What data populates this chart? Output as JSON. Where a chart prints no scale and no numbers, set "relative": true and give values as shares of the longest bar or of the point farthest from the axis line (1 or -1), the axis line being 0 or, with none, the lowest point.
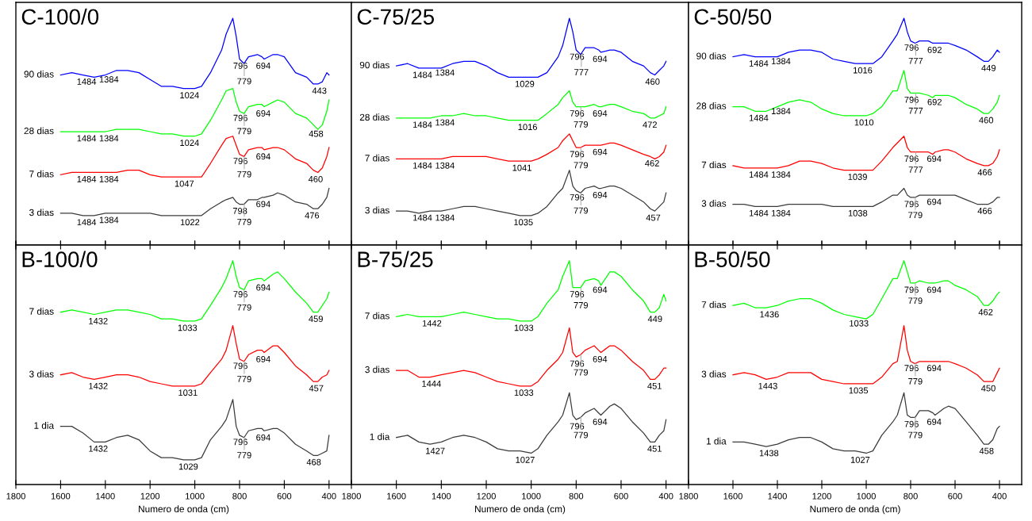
{
  "chart_data": [
    {
      "type": "line",
      "title": "C-100/0",
      "relative": true,
      "xlim": [
        1800,
        300
      ],
      "xticks": [
        1800,
        1600,
        1400,
        1200,
        1000,
        800,
        600,
        400
      ],
      "tick_labels": false,
      "x": [
        1600,
        1550,
        1500,
        1450,
        1400,
        1350,
        1300,
        1250,
        1200,
        1150,
        1100,
        1050,
        1000,
        970,
        930,
        880,
        860,
        830,
        815,
        800,
        780,
        760,
        720,
        700,
        690,
        650,
        630,
        600,
        550,
        500,
        470,
        450,
        430,
        410,
        400
      ],
      "series": [
        {
          "name": "90 dias",
          "color": "#0000ff",
          "values": [
            0.75,
            0.76,
            0.75,
            0.74,
            0.75,
            0.77,
            0.77,
            0.76,
            0.73,
            0.7,
            0.7,
            0.69,
            0.69,
            0.7,
            0.76,
            0.86,
            0.93,
            1.0,
            0.92,
            0.82,
            0.8,
            0.83,
            0.84,
            0.83,
            0.82,
            0.84,
            0.84,
            0.83,
            0.76,
            0.74,
            0.71,
            0.71,
            0.72,
            0.76,
            0.75
          ]
        },
        {
          "name": "28 dias",
          "color": "#00ff00",
          "values": [
            0.5,
            0.5,
            0.5,
            0.5,
            0.5,
            0.51,
            0.51,
            0.51,
            0.5,
            0.49,
            0.49,
            0.48,
            0.48,
            0.49,
            0.55,
            0.64,
            0.68,
            0.69,
            0.63,
            0.59,
            0.58,
            0.61,
            0.62,
            0.62,
            0.61,
            0.63,
            0.64,
            0.63,
            0.58,
            0.56,
            0.53,
            0.51,
            0.53,
            0.59,
            0.64
          ]
        },
        {
          "name": "7 dias",
          "color": "#ff0000",
          "values": [
            0.31,
            0.32,
            0.32,
            0.32,
            0.32,
            0.32,
            0.33,
            0.33,
            0.31,
            0.3,
            0.3,
            0.3,
            0.3,
            0.3,
            0.36,
            0.44,
            0.47,
            0.48,
            0.44,
            0.4,
            0.39,
            0.42,
            0.43,
            0.43,
            0.42,
            0.43,
            0.43,
            0.42,
            0.38,
            0.36,
            0.33,
            0.32,
            0.34,
            0.39,
            0.43
          ]
        },
        {
          "name": "3 dias",
          "color": "#3c3c3c",
          "values": [
            0.14,
            0.14,
            0.13,
            0.13,
            0.14,
            0.14,
            0.14,
            0.14,
            0.14,
            0.13,
            0.13,
            0.13,
            0.13,
            0.13,
            0.16,
            0.19,
            0.2,
            0.21,
            0.19,
            0.18,
            0.18,
            0.2,
            0.2,
            0.21,
            0.21,
            0.22,
            0.23,
            0.22,
            0.19,
            0.18,
            0.16,
            0.16,
            0.18,
            0.21,
            0.25
          ]
        }
      ],
      "annotations": [
        {
          "text": "1484",
          "x": 1484,
          "y": 0.75
        },
        {
          "text": "1384",
          "x": 1384,
          "y": 0.76
        },
        {
          "text": "1024",
          "x": 1024,
          "y": 0.69
        },
        {
          "text": "796",
          "x": 796,
          "y": 0.82
        },
        {
          "text": "694",
          "x": 694,
          "y": 0.82
        },
        {
          "text": "779",
          "x": 779,
          "y": 0.8
        },
        {
          "text": "443",
          "x": 443,
          "y": 0.71
        },
        {
          "text": "1484",
          "x": 1484,
          "y": 0.5
        },
        {
          "text": "1384",
          "x": 1384,
          "y": 0.5
        },
        {
          "text": "1024",
          "x": 1024,
          "y": 0.48
        },
        {
          "text": "796",
          "x": 796,
          "y": 0.59
        },
        {
          "text": "694",
          "x": 694,
          "y": 0.61
        },
        {
          "text": "779",
          "x": 779,
          "y": 0.58
        },
        {
          "text": "458",
          "x": 458,
          "y": 0.52
        },
        {
          "text": "1484",
          "x": 1484,
          "y": 0.32
        },
        {
          "text": "1384",
          "x": 1384,
          "y": 0.32
        },
        {
          "text": "1047",
          "x": 1047,
          "y": 0.3
        },
        {
          "text": "796",
          "x": 796,
          "y": 0.4
        },
        {
          "text": "694",
          "x": 694,
          "y": 0.42
        },
        {
          "text": "779",
          "x": 779,
          "y": 0.39
        },
        {
          "text": "460",
          "x": 460,
          "y": 0.32
        },
        {
          "text": "1484",
          "x": 1484,
          "y": 0.13
        },
        {
          "text": "1384",
          "x": 1384,
          "y": 0.14
        },
        {
          "text": "1022",
          "x": 1022,
          "y": 0.13
        },
        {
          "text": "798",
          "x": 798,
          "y": 0.18
        },
        {
          "text": "694",
          "x": 694,
          "y": 0.21
        },
        {
          "text": "779",
          "x": 779,
          "y": 0.18
        },
        {
          "text": "476",
          "x": 476,
          "y": 0.16
        }
      ]
    },
    {
      "type": "line",
      "title": "C-75/25",
      "relative": true,
      "xlim": [
        1800,
        300
      ],
      "xticks": [
        1800,
        1600,
        1400,
        1200,
        1000,
        800,
        600,
        400
      ],
      "tick_labels": false,
      "x": [
        1600,
        1550,
        1500,
        1450,
        1400,
        1350,
        1300,
        1250,
        1200,
        1150,
        1100,
        1050,
        1000,
        970,
        930,
        880,
        860,
        830,
        815,
        800,
        780,
        760,
        720,
        700,
        690,
        650,
        630,
        600,
        550,
        500,
        470,
        450,
        430,
        410,
        400
      ],
      "series": [
        {
          "name": "90 dias",
          "color": "#0000ff",
          "values": [
            0.79,
            0.8,
            0.78,
            0.78,
            0.78,
            0.8,
            0.81,
            0.81,
            0.79,
            0.76,
            0.74,
            0.74,
            0.74,
            0.74,
            0.76,
            0.83,
            0.88,
            1.0,
            0.94,
            0.86,
            0.84,
            0.87,
            0.87,
            0.86,
            0.85,
            0.86,
            0.86,
            0.85,
            0.81,
            0.79,
            0.76,
            0.75,
            0.77,
            0.79,
            0.81
          ]
        },
        {
          "name": "28 dias",
          "color": "#00ff00",
          "values": [
            0.56,
            0.56,
            0.56,
            0.56,
            0.57,
            0.57,
            0.58,
            0.57,
            0.57,
            0.56,
            0.55,
            0.55,
            0.55,
            0.55,
            0.58,
            0.62,
            0.65,
            0.68,
            0.63,
            0.61,
            0.61,
            0.61,
            0.62,
            0.61,
            0.61,
            0.62,
            0.62,
            0.61,
            0.59,
            0.58,
            0.56,
            0.56,
            0.57,
            0.58,
            0.61
          ]
        },
        {
          "name": "7 dias",
          "color": "#ff0000",
          "values": [
            0.38,
            0.38,
            0.38,
            0.38,
            0.38,
            0.39,
            0.39,
            0.39,
            0.39,
            0.38,
            0.37,
            0.37,
            0.37,
            0.38,
            0.4,
            0.43,
            0.46,
            0.49,
            0.46,
            0.43,
            0.43,
            0.44,
            0.44,
            0.44,
            0.44,
            0.45,
            0.45,
            0.44,
            0.42,
            0.4,
            0.39,
            0.38,
            0.39,
            0.41,
            0.44
          ]
        },
        {
          "name": "3 dias",
          "color": "#3c3c3c",
          "values": [
            0.15,
            0.15,
            0.14,
            0.15,
            0.15,
            0.16,
            0.17,
            0.17,
            0.16,
            0.15,
            0.14,
            0.13,
            0.13,
            0.14,
            0.17,
            0.23,
            0.25,
            0.33,
            0.26,
            0.24,
            0.23,
            0.25,
            0.26,
            0.25,
            0.25,
            0.26,
            0.26,
            0.25,
            0.22,
            0.19,
            0.16,
            0.15,
            0.17,
            0.19,
            0.23
          ]
        }
      ],
      "annotations": [
        {
          "text": "1484",
          "x": 1484,
          "y": 0.78
        },
        {
          "text": "1384",
          "x": 1384,
          "y": 0.79
        },
        {
          "text": "1029",
          "x": 1029,
          "y": 0.74
        },
        {
          "text": "796",
          "x": 796,
          "y": 0.86
        },
        {
          "text": "694",
          "x": 694,
          "y": 0.85
        },
        {
          "text": "777",
          "x": 777,
          "y": 0.84
        },
        {
          "text": "460",
          "x": 460,
          "y": 0.75
        },
        {
          "text": "1484",
          "x": 1484,
          "y": 0.56
        },
        {
          "text": "1384",
          "x": 1384,
          "y": 0.57
        },
        {
          "text": "1016",
          "x": 1016,
          "y": 0.55
        },
        {
          "text": "796",
          "x": 796,
          "y": 0.61
        },
        {
          "text": "694",
          "x": 694,
          "y": 0.61
        },
        {
          "text": "779",
          "x": 779,
          "y": 0.61
        },
        {
          "text": "472",
          "x": 472,
          "y": 0.56
        },
        {
          "text": "1484",
          "x": 1484,
          "y": 0.38
        },
        {
          "text": "1384",
          "x": 1384,
          "y": 0.38
        },
        {
          "text": "1041",
          "x": 1041,
          "y": 0.37
        },
        {
          "text": "796",
          "x": 796,
          "y": 0.43
        },
        {
          "text": "694",
          "x": 694,
          "y": 0.44
        },
        {
          "text": "779",
          "x": 779,
          "y": 0.43
        },
        {
          "text": "462",
          "x": 462,
          "y": 0.39
        },
        {
          "text": "1484",
          "x": 1484,
          "y": 0.15
        },
        {
          "text": "1384",
          "x": 1384,
          "y": 0.15
        },
        {
          "text": "1035",
          "x": 1035,
          "y": 0.13
        },
        {
          "text": "796",
          "x": 796,
          "y": 0.24
        },
        {
          "text": "694",
          "x": 694,
          "y": 0.25
        },
        {
          "text": "779",
          "x": 779,
          "y": 0.23
        },
        {
          "text": "457",
          "x": 457,
          "y": 0.15
        }
      ]
    },
    {
      "type": "line",
      "title": "C-50/50",
      "relative": true,
      "xlim": [
        1800,
        300
      ],
      "xticks": [
        1800,
        1600,
        1400,
        1200,
        1000,
        800,
        600,
        400
      ],
      "tick_labels": false,
      "x": [
        1600,
        1550,
        1500,
        1450,
        1400,
        1350,
        1300,
        1250,
        1200,
        1150,
        1100,
        1050,
        1000,
        970,
        930,
        880,
        860,
        830,
        815,
        800,
        780,
        760,
        720,
        700,
        690,
        650,
        630,
        600,
        550,
        500,
        470,
        450,
        430,
        410,
        400
      ],
      "series": [
        {
          "name": "90 dias",
          "color": "#0000ff",
          "values": [
            0.83,
            0.84,
            0.83,
            0.83,
            0.83,
            0.85,
            0.86,
            0.86,
            0.85,
            0.82,
            0.81,
            0.8,
            0.8,
            0.8,
            0.83,
            0.9,
            0.93,
            1.0,
            0.94,
            0.9,
            0.89,
            0.9,
            0.9,
            0.89,
            0.89,
            0.89,
            0.89,
            0.88,
            0.86,
            0.83,
            0.81,
            0.81,
            0.83,
            0.86,
            0.85
          ]
        },
        {
          "name": "28 dias",
          "color": "#00ff00",
          "values": [
            0.61,
            0.61,
            0.59,
            0.59,
            0.61,
            0.63,
            0.64,
            0.63,
            0.6,
            0.58,
            0.57,
            0.57,
            0.57,
            0.58,
            0.61,
            0.68,
            0.68,
            0.77,
            0.69,
            0.67,
            0.67,
            0.67,
            0.66,
            0.65,
            0.66,
            0.66,
            0.66,
            0.65,
            0.62,
            0.6,
            0.58,
            0.58,
            0.6,
            0.63,
            0.66
          ]
        },
        {
          "name": "7 dias",
          "color": "#ff0000",
          "values": [
            0.35,
            0.34,
            0.34,
            0.34,
            0.34,
            0.35,
            0.37,
            0.37,
            0.36,
            0.34,
            0.33,
            0.33,
            0.33,
            0.33,
            0.37,
            0.43,
            0.45,
            0.48,
            0.43,
            0.41,
            0.41,
            0.41,
            0.41,
            0.4,
            0.41,
            0.42,
            0.42,
            0.41,
            0.38,
            0.36,
            0.35,
            0.35,
            0.36,
            0.39,
            0.42
          ]
        },
        {
          "name": "3 dias",
          "color": "#3c3c3c",
          "values": [
            0.18,
            0.18,
            0.17,
            0.17,
            0.17,
            0.18,
            0.18,
            0.18,
            0.18,
            0.17,
            0.17,
            0.17,
            0.17,
            0.17,
            0.19,
            0.22,
            0.22,
            0.25,
            0.22,
            0.21,
            0.21,
            0.22,
            0.22,
            0.22,
            0.22,
            0.22,
            0.22,
            0.22,
            0.2,
            0.18,
            0.18,
            0.18,
            0.19,
            0.21,
            0.21
          ]
        }
      ],
      "annotations": [
        {
          "text": "1484",
          "x": 1484,
          "y": 0.83
        },
        {
          "text": "1384",
          "x": 1384,
          "y": 0.84
        },
        {
          "text": "1016",
          "x": 1016,
          "y": 0.8
        },
        {
          "text": "796",
          "x": 796,
          "y": 0.9
        },
        {
          "text": "692",
          "x": 692,
          "y": 0.89
        },
        {
          "text": "777",
          "x": 777,
          "y": 0.89
        },
        {
          "text": "449",
          "x": 449,
          "y": 0.81
        },
        {
          "text": "1484",
          "x": 1484,
          "y": 0.59
        },
        {
          "text": "1384",
          "x": 1384,
          "y": 0.62
        },
        {
          "text": "1010",
          "x": 1010,
          "y": 0.57
        },
        {
          "text": "796",
          "x": 796,
          "y": 0.67
        },
        {
          "text": "692",
          "x": 692,
          "y": 0.66
        },
        {
          "text": "777",
          "x": 777,
          "y": 0.67
        },
        {
          "text": "460",
          "x": 460,
          "y": 0.58
        },
        {
          "text": "1484",
          "x": 1484,
          "y": 0.34
        },
        {
          "text": "1384",
          "x": 1384,
          "y": 0.34
        },
        {
          "text": "1039",
          "x": 1039,
          "y": 0.33
        },
        {
          "text": "796",
          "x": 796,
          "y": 0.41
        },
        {
          "text": "694",
          "x": 694,
          "y": 0.41
        },
        {
          "text": "777",
          "x": 777,
          "y": 0.41
        },
        {
          "text": "466",
          "x": 466,
          "y": 0.35
        },
        {
          "text": "1484",
          "x": 1484,
          "y": 0.17
        },
        {
          "text": "1384",
          "x": 1384,
          "y": 0.17
        },
        {
          "text": "1038",
          "x": 1038,
          "y": 0.17
        },
        {
          "text": "796",
          "x": 796,
          "y": 0.21
        },
        {
          "text": "694",
          "x": 694,
          "y": 0.22
        },
        {
          "text": "779",
          "x": 779,
          "y": 0.21
        },
        {
          "text": "466",
          "x": 466,
          "y": 0.18
        }
      ]
    },
    {
      "type": "line",
      "title": "B-100/0",
      "xlabel": "Numero de onda (cm)",
      "relative": true,
      "xlim": [
        1800,
        300
      ],
      "xticks": [
        1800,
        1600,
        1400,
        1200,
        1000,
        800,
        600,
        400
      ],
      "tick_labels": "x",
      "x": [
        1600,
        1550,
        1500,
        1450,
        1400,
        1350,
        1300,
        1250,
        1200,
        1150,
        1100,
        1050,
        1000,
        970,
        930,
        880,
        860,
        830,
        815,
        800,
        780,
        760,
        720,
        700,
        690,
        650,
        630,
        600,
        550,
        500,
        470,
        450,
        430,
        410,
        400
      ],
      "series": [
        {
          "name": "7 dias",
          "color": "#00ff00",
          "values": [
            0.77,
            0.78,
            0.77,
            0.76,
            0.77,
            0.78,
            0.78,
            0.77,
            0.76,
            0.74,
            0.74,
            0.73,
            0.73,
            0.74,
            0.8,
            0.88,
            0.92,
            1.0,
            0.93,
            0.88,
            0.87,
            0.91,
            0.92,
            0.92,
            0.91,
            0.94,
            0.95,
            0.92,
            0.86,
            0.81,
            0.77,
            0.77,
            0.8,
            0.83,
            0.86
          ]
        },
        {
          "name": "3 dias",
          "color": "#ff0000",
          "values": [
            0.49,
            0.5,
            0.48,
            0.47,
            0.48,
            0.49,
            0.49,
            0.48,
            0.46,
            0.45,
            0.44,
            0.44,
            0.44,
            0.45,
            0.5,
            0.56,
            0.6,
            0.71,
            0.63,
            0.56,
            0.55,
            0.58,
            0.6,
            0.6,
            0.59,
            0.62,
            0.62,
            0.59,
            0.53,
            0.49,
            0.46,
            0.46,
            0.48,
            0.49,
            0.51
          ]
        },
        {
          "name": "1 dia",
          "color": "#3c3c3c",
          "values": [
            0.26,
            0.26,
            0.23,
            0.19,
            0.19,
            0.21,
            0.22,
            0.2,
            0.15,
            0.12,
            0.12,
            0.11,
            0.11,
            0.12,
            0.2,
            0.26,
            0.29,
            0.38,
            0.26,
            0.22,
            0.21,
            0.24,
            0.25,
            0.25,
            0.24,
            0.25,
            0.25,
            0.23,
            0.18,
            0.15,
            0.13,
            0.13,
            0.14,
            0.15,
            0.22
          ]
        }
      ],
      "annotations": [
        {
          "text": "1432",
          "x": 1432,
          "y": 0.76
        },
        {
          "text": "1033",
          "x": 1033,
          "y": 0.73
        },
        {
          "text": "796",
          "x": 796,
          "y": 0.88
        },
        {
          "text": "694",
          "x": 694,
          "y": 0.91
        },
        {
          "text": "779",
          "x": 779,
          "y": 0.87
        },
        {
          "text": "459",
          "x": 459,
          "y": 0.77
        },
        {
          "text": "1432",
          "x": 1432,
          "y": 0.47
        },
        {
          "text": "1031",
          "x": 1031,
          "y": 0.44
        },
        {
          "text": "796",
          "x": 796,
          "y": 0.56
        },
        {
          "text": "694",
          "x": 694,
          "y": 0.59
        },
        {
          "text": "779",
          "x": 779,
          "y": 0.55
        },
        {
          "text": "457",
          "x": 457,
          "y": 0.46
        },
        {
          "text": "1432",
          "x": 1432,
          "y": 0.19
        },
        {
          "text": "1029",
          "x": 1029,
          "y": 0.11
        },
        {
          "text": "796",
          "x": 796,
          "y": 0.22
        },
        {
          "text": "694",
          "x": 694,
          "y": 0.24
        },
        {
          "text": "779",
          "x": 779,
          "y": 0.21
        },
        {
          "text": "468",
          "x": 468,
          "y": 0.13
        }
      ]
    },
    {
      "type": "line",
      "title": "B-75/25",
      "xlabel": "Numero de onda (cm)",
      "relative": true,
      "xlim": [
        1800,
        300
      ],
      "xticks": [
        1800,
        1600,
        1400,
        1200,
        1000,
        800,
        600,
        400
      ],
      "tick_labels": "x",
      "x": [
        1600,
        1550,
        1500,
        1450,
        1400,
        1350,
        1300,
        1250,
        1200,
        1150,
        1100,
        1050,
        1000,
        970,
        930,
        880,
        860,
        830,
        815,
        800,
        780,
        760,
        720,
        700,
        690,
        650,
        630,
        600,
        550,
        500,
        470,
        450,
        430,
        410,
        400
      ],
      "series": [
        {
          "name": "7 dias",
          "color": "#00ff00",
          "values": [
            0.75,
            0.76,
            0.75,
            0.75,
            0.75,
            0.76,
            0.77,
            0.76,
            0.75,
            0.74,
            0.74,
            0.73,
            0.73,
            0.75,
            0.81,
            0.87,
            0.93,
            1.0,
            0.88,
            0.88,
            0.88,
            0.91,
            0.92,
            0.91,
            0.89,
            0.95,
            0.95,
            0.93,
            0.87,
            0.82,
            0.77,
            0.77,
            0.79,
            0.85,
            0.82
          ]
        },
        {
          "name": "3 dias",
          "color": "#ff0000",
          "values": [
            0.51,
            0.51,
            0.48,
            0.48,
            0.49,
            0.5,
            0.51,
            0.5,
            0.48,
            0.46,
            0.45,
            0.44,
            0.44,
            0.46,
            0.51,
            0.56,
            0.59,
            0.7,
            0.59,
            0.57,
            0.58,
            0.6,
            0.62,
            0.6,
            0.59,
            0.62,
            0.62,
            0.6,
            0.55,
            0.51,
            0.47,
            0.47,
            0.49,
            0.52,
            0.52
          ]
        },
        {
          "name": "1 dia",
          "color": "#3c3c3c",
          "values": [
            0.21,
            0.22,
            0.19,
            0.18,
            0.19,
            0.21,
            0.22,
            0.21,
            0.19,
            0.16,
            0.15,
            0.15,
            0.14,
            0.16,
            0.22,
            0.28,
            0.31,
            0.41,
            0.31,
            0.29,
            0.3,
            0.32,
            0.34,
            0.32,
            0.31,
            0.35,
            0.36,
            0.34,
            0.28,
            0.23,
            0.19,
            0.19,
            0.22,
            0.24,
            0.29
          ]
        }
      ],
      "annotations": [
        {
          "text": "1442",
          "x": 1442,
          "y": 0.75
        },
        {
          "text": "1033",
          "x": 1033,
          "y": 0.73
        },
        {
          "text": "796",
          "x": 796,
          "y": 0.88
        },
        {
          "text": "694",
          "x": 694,
          "y": 0.9
        },
        {
          "text": "779",
          "x": 779,
          "y": 0.88
        },
        {
          "text": "449",
          "x": 449,
          "y": 0.77
        },
        {
          "text": "1444",
          "x": 1444,
          "y": 0.48
        },
        {
          "text": "1033",
          "x": 1033,
          "y": 0.44
        },
        {
          "text": "796",
          "x": 796,
          "y": 0.57
        },
        {
          "text": "694",
          "x": 694,
          "y": 0.59
        },
        {
          "text": "779",
          "x": 779,
          "y": 0.58
        },
        {
          "text": "451",
          "x": 451,
          "y": 0.47
        },
        {
          "text": "1427",
          "x": 1427,
          "y": 0.18
        },
        {
          "text": "1027",
          "x": 1027,
          "y": 0.14
        },
        {
          "text": "796",
          "x": 796,
          "y": 0.29
        },
        {
          "text": "694",
          "x": 694,
          "y": 0.31
        },
        {
          "text": "779",
          "x": 779,
          "y": 0.3
        },
        {
          "text": "451",
          "x": 451,
          "y": 0.19
        }
      ]
    },
    {
      "type": "line",
      "title": "B-50/50",
      "xlabel": "Numero de onda (cm)",
      "relative": true,
      "xlim": [
        1800,
        300
      ],
      "xticks": [
        1800,
        1600,
        1400,
        1200,
        1000,
        800,
        600,
        400
      ],
      "tick_labels": "x",
      "x": [
        1600,
        1550,
        1500,
        1450,
        1400,
        1350,
        1300,
        1250,
        1200,
        1150,
        1100,
        1050,
        1000,
        970,
        930,
        880,
        860,
        830,
        815,
        800,
        780,
        760,
        720,
        700,
        690,
        650,
        630,
        600,
        550,
        500,
        470,
        450,
        430,
        410,
        400
      ],
      "series": [
        {
          "name": "7 dias",
          "color": "#00ff00",
          "values": [
            0.8,
            0.81,
            0.79,
            0.79,
            0.8,
            0.82,
            0.83,
            0.83,
            0.81,
            0.78,
            0.76,
            0.75,
            0.74,
            0.76,
            0.83,
            0.92,
            0.92,
            1.0,
            0.95,
            0.9,
            0.9,
            0.91,
            0.9,
            0.9,
            0.9,
            0.91,
            0.91,
            0.89,
            0.87,
            0.84,
            0.8,
            0.8,
            0.82,
            0.85,
            0.86
          ]
        },
        {
          "name": "3 dias",
          "color": "#ff0000",
          "values": [
            0.49,
            0.5,
            0.49,
            0.47,
            0.48,
            0.5,
            0.5,
            0.5,
            0.47,
            0.46,
            0.45,
            0.45,
            0.45,
            0.45,
            0.48,
            0.54,
            0.55,
            0.71,
            0.6,
            0.55,
            0.54,
            0.55,
            0.55,
            0.55,
            0.55,
            0.55,
            0.55,
            0.54,
            0.52,
            0.49,
            0.46,
            0.46,
            0.46,
            0.5,
            0.52
          ]
        },
        {
          "name": "1 dia",
          "color": "#3c3c3c",
          "values": [
            0.19,
            0.19,
            0.18,
            0.17,
            0.18,
            0.2,
            0.21,
            0.21,
            0.19,
            0.16,
            0.15,
            0.15,
            0.14,
            0.15,
            0.22,
            0.28,
            0.31,
            0.41,
            0.31,
            0.3,
            0.3,
            0.33,
            0.33,
            0.32,
            0.31,
            0.34,
            0.35,
            0.34,
            0.28,
            0.22,
            0.18,
            0.18,
            0.2,
            0.25,
            0.26
          ]
        }
      ],
      "annotations": [
        {
          "text": "1436",
          "x": 1436,
          "y": 0.79
        },
        {
          "text": "1033",
          "x": 1033,
          "y": 0.75
        },
        {
          "text": "796",
          "x": 796,
          "y": 0.9
        },
        {
          "text": "779",
          "x": 779,
          "y": 0.9
        },
        {
          "text": "694",
          "x": 694,
          "y": 0.9
        },
        {
          "text": "462",
          "x": 462,
          "y": 0.8
        },
        {
          "text": "1443",
          "x": 1443,
          "y": 0.47
        },
        {
          "text": "1035",
          "x": 1035,
          "y": 0.45
        },
        {
          "text": "796",
          "x": 796,
          "y": 0.55
        },
        {
          "text": "779",
          "x": 779,
          "y": 0.54
        },
        {
          "text": "694",
          "x": 694,
          "y": 0.55
        },
        {
          "text": "450",
          "x": 450,
          "y": 0.46
        },
        {
          "text": "1438",
          "x": 1438,
          "y": 0.17
        },
        {
          "text": "1027",
          "x": 1027,
          "y": 0.14
        },
        {
          "text": "796",
          "x": 796,
          "y": 0.3
        },
        {
          "text": "779",
          "x": 779,
          "y": 0.3
        },
        {
          "text": "694",
          "x": 694,
          "y": 0.31
        },
        {
          "text": "458",
          "x": 458,
          "y": 0.18
        }
      ]
    }
  ]
}
